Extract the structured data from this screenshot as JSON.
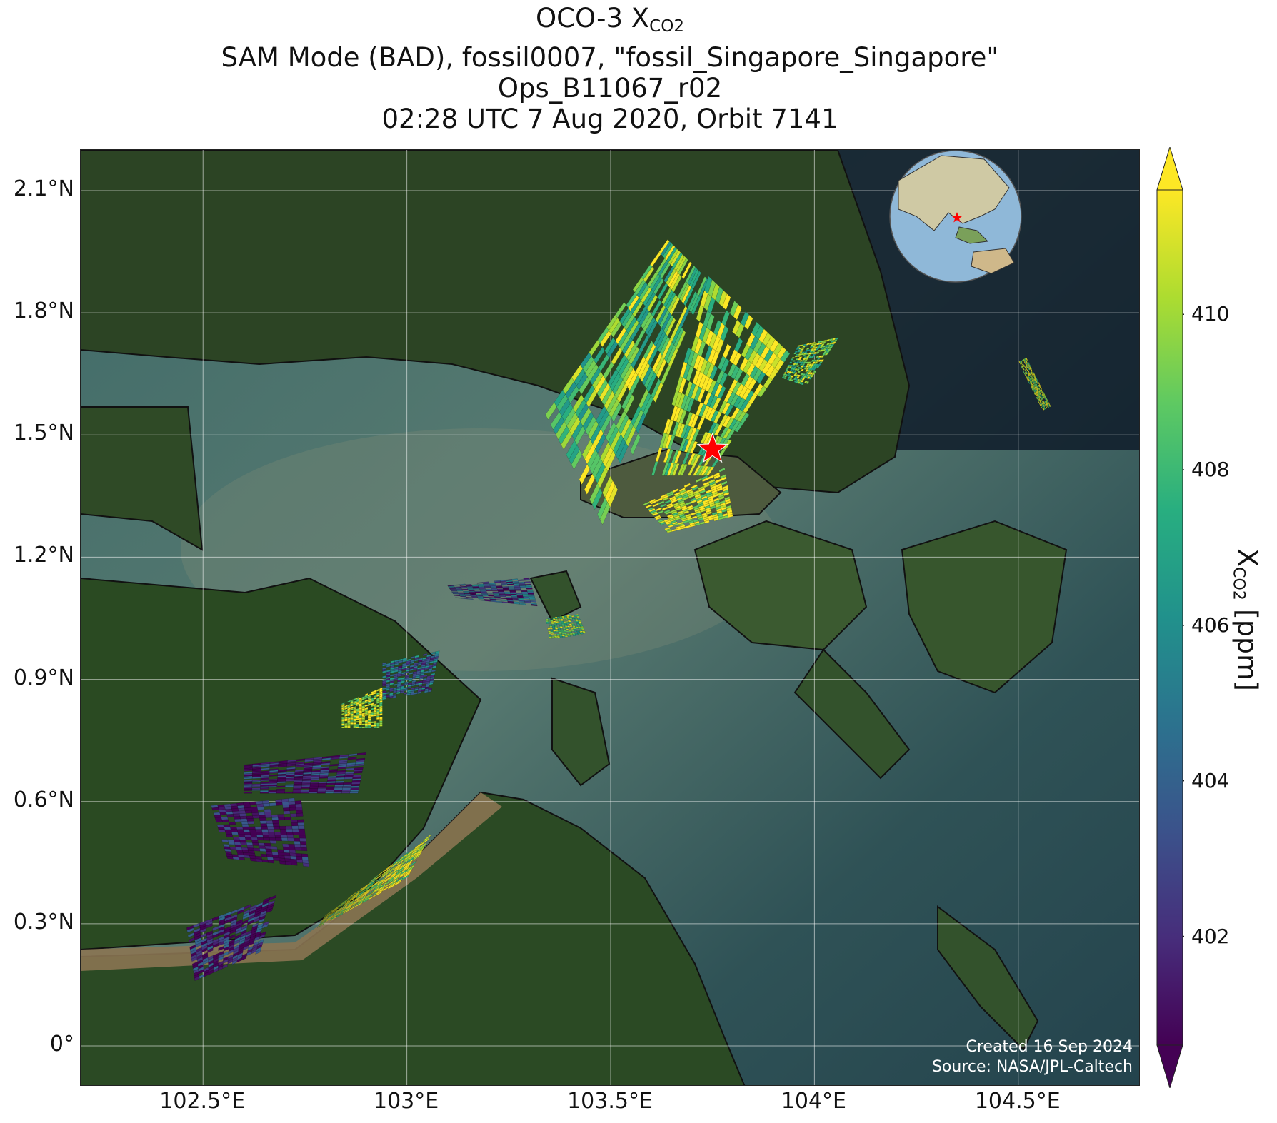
{
  "title": {
    "line1_prefix": "OCO-3 X",
    "line1_sub": "CO2",
    "line2": "SAM Mode (BAD), fossil0007, \"fossil_Singapore_Singapore\"",
    "line3": "Ops_B11067_r02",
    "line4": "02:28 UTC 7 Aug 2020, Orbit 7141"
  },
  "map": {
    "lon_range": [
      102.2,
      104.8
    ],
    "lat_range": [
      -0.1,
      2.2
    ],
    "lat_ticks": [
      {
        "value": 2.1,
        "label": "2.1°N"
      },
      {
        "value": 1.8,
        "label": "1.8°N"
      },
      {
        "value": 1.5,
        "label": "1.5°N"
      },
      {
        "value": 1.2,
        "label": "1.2°N"
      },
      {
        "value": 0.9,
        "label": "0.9°N"
      },
      {
        "value": 0.6,
        "label": "0.6°N"
      },
      {
        "value": 0.3,
        "label": "0.3°N"
      },
      {
        "value": 0.0,
        "label": "0°"
      }
    ],
    "lon_ticks": [
      {
        "value": 102.5,
        "label": "102.5°E"
      },
      {
        "value": 103.0,
        "label": "103°E"
      },
      {
        "value": 103.5,
        "label": "103.5°E"
      },
      {
        "value": 104.0,
        "label": "104°E"
      },
      {
        "value": 104.5,
        "label": "104.5°E"
      }
    ],
    "target": {
      "lon": 103.75,
      "lat": 1.465,
      "color": "#ff0000"
    },
    "credit_created": "Created 16 Sep 2024",
    "credit_source": "Source: NASA/JPL-Caltech",
    "inset_globe": {
      "region": "Southeast Asia",
      "marker_color": "#ff0000"
    }
  },
  "colorbar": {
    "colormap": "viridis",
    "range": [
      400.6,
      411.6
    ],
    "extend": "both",
    "ticks": [
      {
        "value": 402,
        "label": "402"
      },
      {
        "value": 404,
        "label": "404"
      },
      {
        "value": 406,
        "label": "406"
      },
      {
        "value": 408,
        "label": "408"
      },
      {
        "value": 410,
        "label": "410"
      }
    ],
    "label_prefix": "X",
    "label_sub": "CO2",
    "label_suffix": " [ppm]"
  },
  "soundings": [
    {
      "name": "target-swath-west",
      "corners": [
        [
          103.34,
          1.55
        ],
        [
          103.64,
          1.98
        ],
        [
          103.74,
          1.88
        ],
        [
          103.48,
          1.28
        ]
      ],
      "mean_ppm": 409
    },
    {
      "name": "target-swath-east",
      "corners": [
        [
          103.6,
          1.4
        ],
        [
          103.74,
          1.89
        ],
        [
          103.94,
          1.7
        ],
        [
          103.98,
          1.57
        ],
        [
          103.74,
          1.4
        ]
      ],
      "mean_ppm": 410
    },
    {
      "name": "target-swath-south",
      "corners": [
        [
          103.58,
          1.33
        ],
        [
          103.78,
          1.42
        ],
        [
          103.8,
          1.3
        ],
        [
          103.64,
          1.26
        ]
      ],
      "mean_ppm": 411
    },
    {
      "name": "target-swath-northeast",
      "corners": [
        [
          103.96,
          1.72
        ],
        [
          104.06,
          1.74
        ],
        [
          103.98,
          1.62
        ],
        [
          103.92,
          1.64
        ]
      ],
      "mean_ppm": 409
    },
    {
      "name": "east-strip",
      "corners": [
        [
          104.5,
          1.68
        ],
        [
          104.52,
          1.69
        ],
        [
          104.58,
          1.57
        ],
        [
          104.56,
          1.56
        ]
      ],
      "mean_ppm": 410
    },
    {
      "name": "mid-scatter",
      "corners": [
        [
          103.1,
          1.13
        ],
        [
          103.3,
          1.15
        ],
        [
          103.32,
          1.08
        ],
        [
          103.12,
          1.1
        ]
      ],
      "mean_ppm": 403
    },
    {
      "name": "island-scatter",
      "corners": [
        [
          103.34,
          1.05
        ],
        [
          103.42,
          1.06
        ],
        [
          103.44,
          1.01
        ],
        [
          103.35,
          1.0
        ]
      ],
      "mean_ppm": 409
    },
    {
      "name": "river-north-a",
      "corners": [
        [
          102.94,
          0.94
        ],
        [
          103.08,
          0.97
        ],
        [
          103.06,
          0.87
        ],
        [
          102.94,
          0.85
        ]
      ],
      "mean_ppm": 404
    },
    {
      "name": "river-north-b",
      "corners": [
        [
          102.84,
          0.84
        ],
        [
          102.94,
          0.88
        ],
        [
          102.94,
          0.78
        ],
        [
          102.84,
          0.78
        ]
      ],
      "mean_ppm": 411
    },
    {
      "name": "river-mid",
      "corners": [
        [
          102.6,
          0.69
        ],
        [
          102.9,
          0.72
        ],
        [
          102.88,
          0.62
        ],
        [
          102.6,
          0.62
        ]
      ],
      "mean_ppm": 401.5
    },
    {
      "name": "river-south-a",
      "corners": [
        [
          102.52,
          0.59
        ],
        [
          102.74,
          0.61
        ],
        [
          102.76,
          0.44
        ],
        [
          102.56,
          0.46
        ]
      ],
      "mean_ppm": 401
    },
    {
      "name": "river-south-b",
      "corners": [
        [
          102.8,
          0.32
        ],
        [
          103.06,
          0.52
        ],
        [
          103.0,
          0.41
        ],
        [
          102.78,
          0.29
        ]
      ],
      "mean_ppm": 410.5
    },
    {
      "name": "river-south-c",
      "corners": [
        [
          102.46,
          0.29
        ],
        [
          102.68,
          0.37
        ],
        [
          102.64,
          0.23
        ],
        [
          102.48,
          0.16
        ]
      ],
      "mean_ppm": 401.5
    }
  ]
}
